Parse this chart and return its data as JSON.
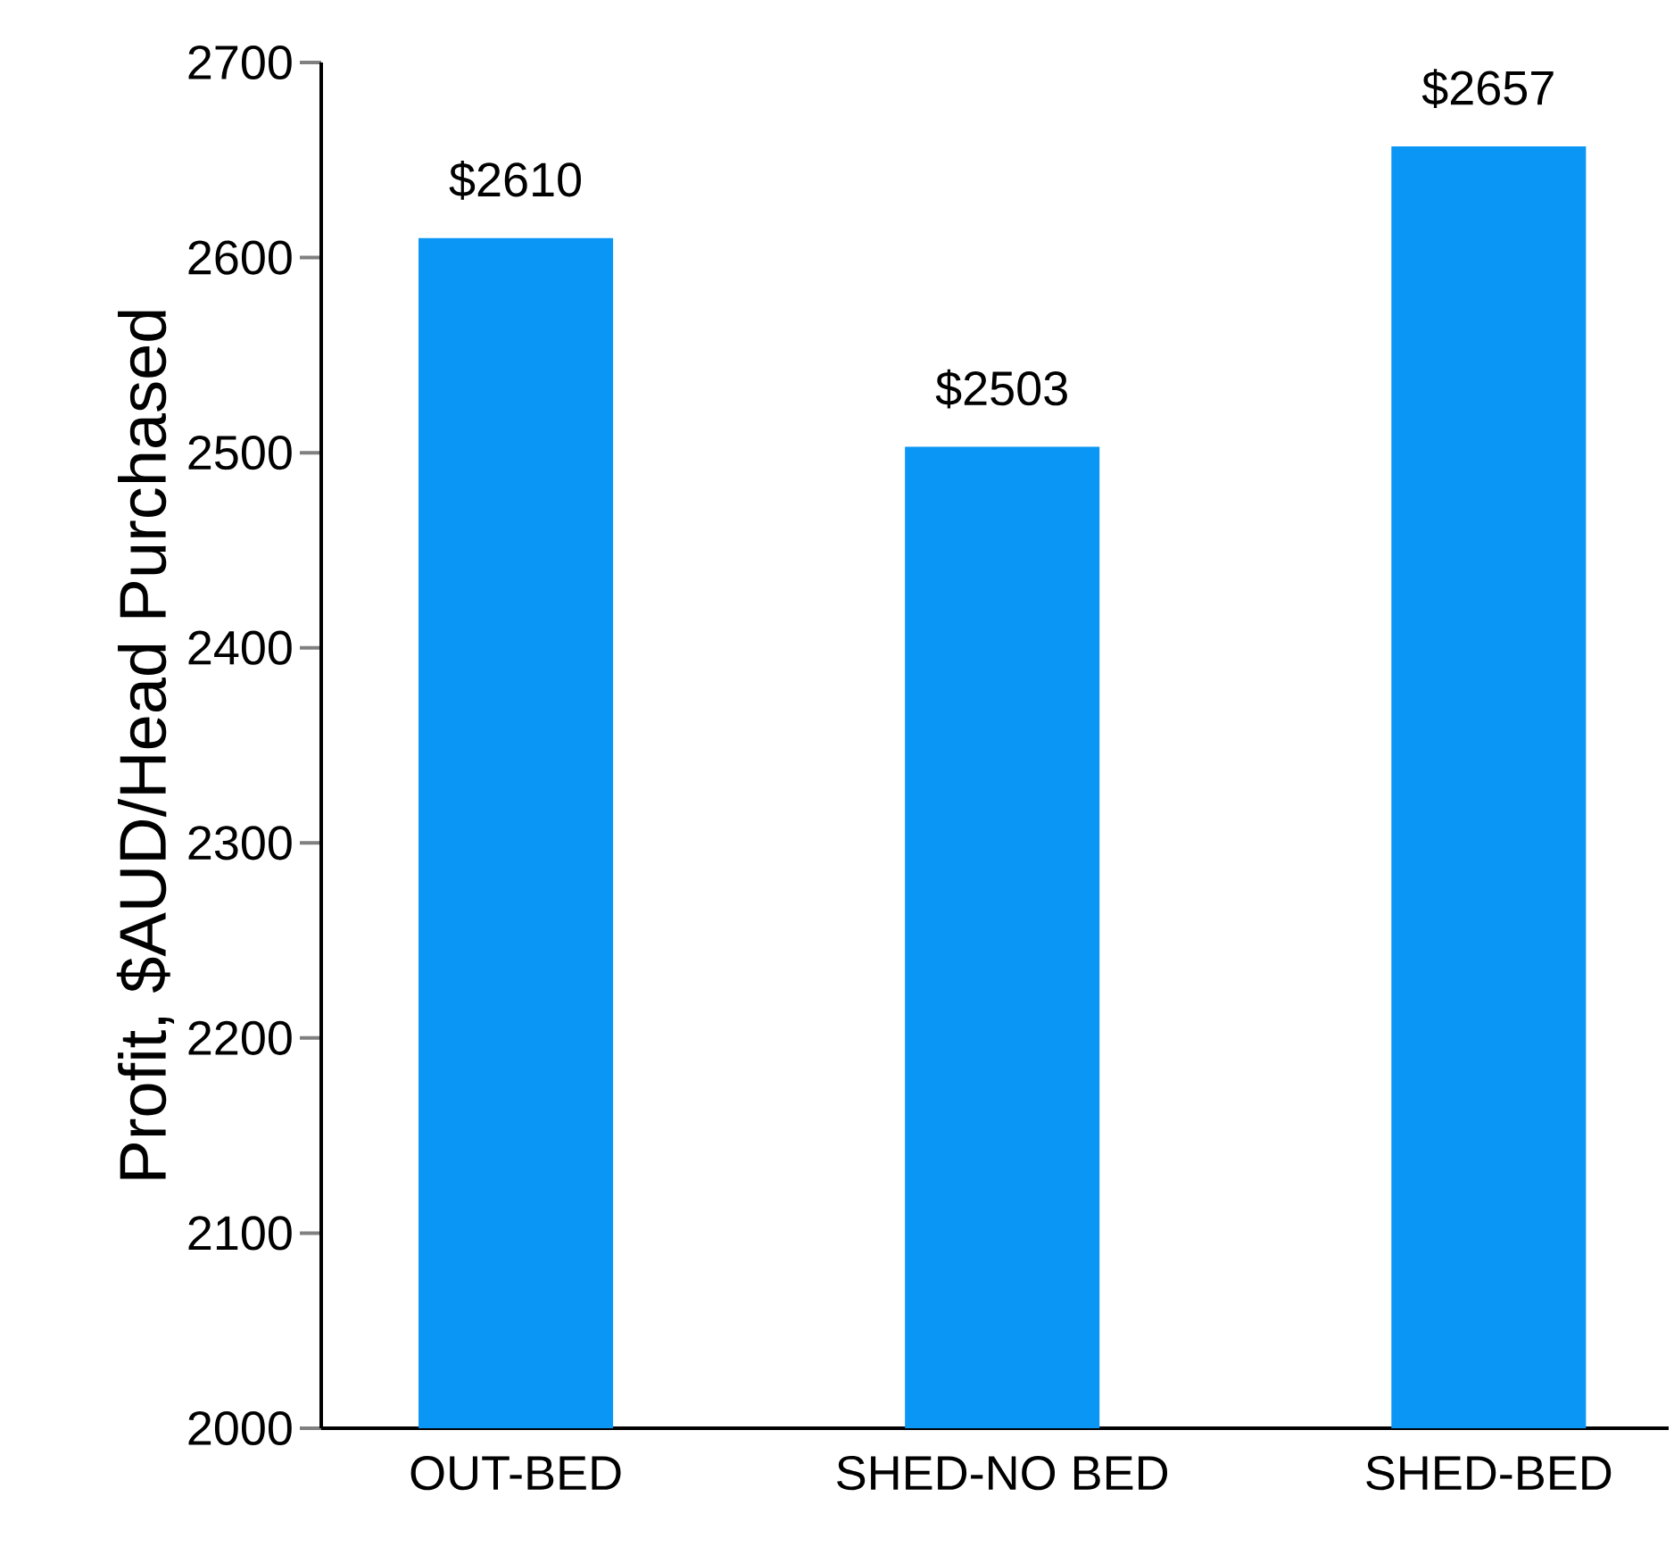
{
  "chart_data": {
    "type": "bar",
    "ylabel": "Profit, $AUD/Head Purchased",
    "categories": [
      "OUT-BED",
      "SHED-NO BED",
      "SHED-BED"
    ],
    "values": [
      2610,
      2503,
      2657
    ],
    "value_labels": [
      "$2610",
      "$2503",
      "$2657"
    ],
    "color": "#0a96f5",
    "ylim": [
      2000,
      2700
    ],
    "yticks": [
      2000,
      2100,
      2200,
      2300,
      2400,
      2500,
      2600,
      2700
    ],
    "grid": false
  }
}
